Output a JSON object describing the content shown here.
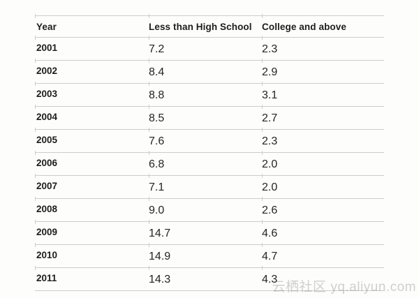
{
  "table": {
    "headers": [
      "Year",
      "Less than High School",
      "College and above"
    ],
    "rows": [
      {
        "year": "2001",
        "less_than_hs": "7.2",
        "college": "2.3"
      },
      {
        "year": "2002",
        "less_than_hs": "8.4",
        "college": "2.9"
      },
      {
        "year": "2003",
        "less_than_hs": "8.8",
        "college": "3.1"
      },
      {
        "year": "2004",
        "less_than_hs": "8.5",
        "college": "2.7"
      },
      {
        "year": "2005",
        "less_than_hs": "7.6",
        "college": "2.3"
      },
      {
        "year": "2006",
        "less_than_hs": "6.8",
        "college": "2.0"
      },
      {
        "year": "2007",
        "less_than_hs": "7.1",
        "college": "2.0"
      },
      {
        "year": "2008",
        "less_than_hs": "9.0",
        "college": "2.6"
      },
      {
        "year": "2009",
        "less_than_hs": "14.7",
        "college": "4.6"
      },
      {
        "year": "2010",
        "less_than_hs": "14.9",
        "college": "4.7"
      },
      {
        "year": "2011",
        "less_than_hs": "14.3",
        "college": "4.3"
      }
    ]
  },
  "watermark": {
    "text": "云栖社区 yq.aliyun.com"
  },
  "colors": {
    "text": "#1d1d1d",
    "value_text": "#242424",
    "grid_line": "#cccccc",
    "background": "#fdfdfc",
    "watermark": "#c9c9c9"
  },
  "chart_data": {
    "type": "table",
    "title": "",
    "categories": [
      "2001",
      "2002",
      "2003",
      "2004",
      "2005",
      "2006",
      "2007",
      "2008",
      "2009",
      "2010",
      "2011"
    ],
    "series": [
      {
        "name": "Less than High School",
        "values": [
          7.2,
          8.4,
          8.8,
          8.5,
          7.6,
          6.8,
          7.1,
          9.0,
          14.7,
          14.9,
          14.3
        ]
      },
      {
        "name": "College and above",
        "values": [
          2.3,
          2.9,
          3.1,
          2.7,
          2.3,
          2.0,
          2.0,
          2.6,
          4.6,
          4.7,
          4.3
        ]
      }
    ],
    "layout": {
      "grid": "horizontal-row-separators",
      "legend": "none"
    }
  }
}
